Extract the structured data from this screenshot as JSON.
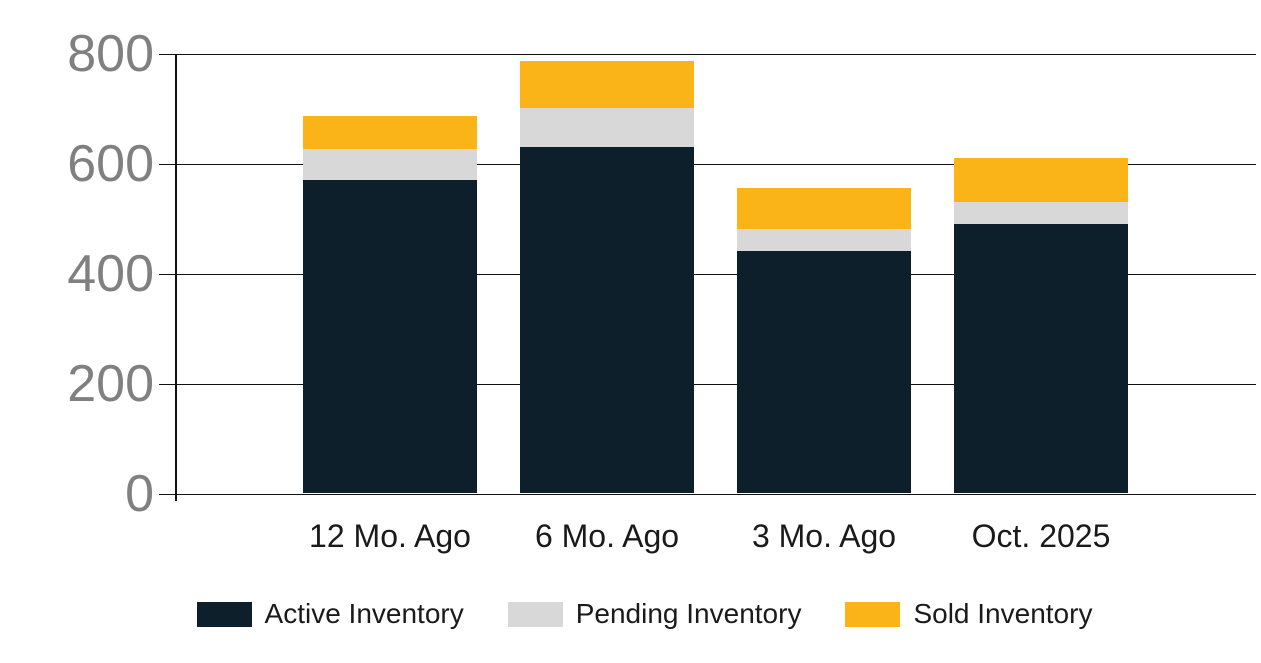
{
  "chart_data": {
    "type": "bar",
    "stacked": true,
    "title": "",
    "xlabel": "",
    "ylabel": "",
    "categories": [
      "12 Mo. Ago",
      "6 Mo. Ago",
      "3 Mo. Ago",
      "Oct. 2025"
    ],
    "series": [
      {
        "name": "Active Inventory",
        "color": "#0c1f2b",
        "values": [
          570,
          630,
          440,
          490
        ]
      },
      {
        "name": "Pending Inventory",
        "color": "#d8d8d8",
        "values": [
          55,
          70,
          40,
          40
        ]
      },
      {
        "name": "Sold Inventory",
        "color": "#fbb418",
        "values": [
          60,
          85,
          75,
          80
        ]
      }
    ],
    "stack_totals": [
      685,
      785,
      555,
      610
    ],
    "ylim": [
      0,
      800
    ],
    "yticks": [
      0,
      200,
      400,
      600,
      800
    ],
    "grid": true,
    "legend_position": "bottom"
  },
  "colors": {
    "background": "#ffffff",
    "axis": "#111111",
    "y_tick_label": "#808080",
    "x_tick_label": "#1a1a1a",
    "legend_text": "#1a1a1a",
    "active_inventory": "#0c1f2b",
    "pending_inventory": "#d8d8d8",
    "sold_inventory": "#fbb418"
  }
}
